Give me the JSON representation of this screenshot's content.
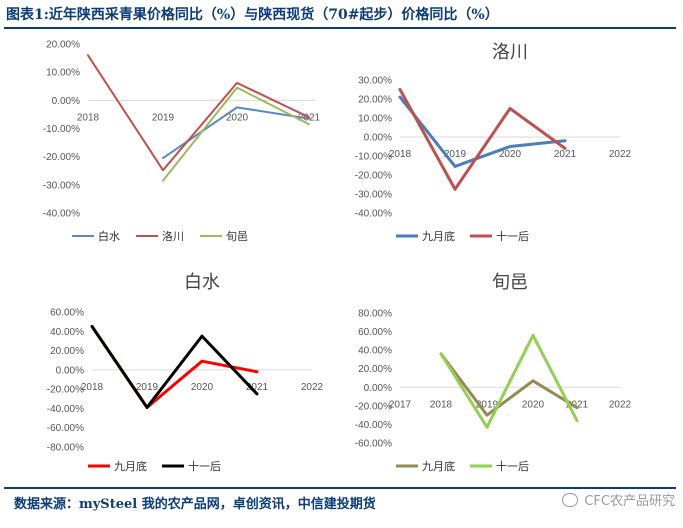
{
  "header": {
    "title": "图表1:近年陕西采青果价格同比（%）与陕西现货（70#起步）价格同比（%）"
  },
  "footer": {
    "source": "数据来源：mySteel 我的农产品网，卓创资讯，中信建投期货",
    "watermark": "CFC农产品研究"
  },
  "colors": {
    "brand": "#0b3c78",
    "baishui": "#5b87c4",
    "luochuan": "#c0504d",
    "xunyi": "#9bbb59",
    "jiuyuedi": "#4a7ebb",
    "shiyihou": "#c0504d",
    "red": "#ff0000",
    "black": "#000000",
    "olive": "#948a54",
    "lightgreen": "#92d050"
  },
  "chart_data": [
    {
      "type": "line",
      "title": "",
      "categories": [
        "2018",
        "2019",
        "2020",
        "2021"
      ],
      "yticks": [
        "20.00%",
        "10.00%",
        "0.00%",
        "-10.00%",
        "-20.00%",
        "-30.00%",
        "-40.00%"
      ],
      "ylim": [
        -40,
        20
      ],
      "legend": "bottom",
      "series": [
        {
          "name": "白水",
          "color_key": "baishui",
          "values": [
            null,
            -20.5,
            -2.5,
            -6.5
          ]
        },
        {
          "name": "洛川",
          "color_key": "luochuan",
          "values": [
            16.0,
            -24.8,
            6.2,
            -6.0
          ]
        },
        {
          "name": "旬邑",
          "color_key": "xunyi",
          "values": [
            null,
            -28.5,
            4.5,
            -8.5
          ]
        }
      ]
    },
    {
      "type": "line",
      "title": "洛川",
      "categories": [
        "2018",
        "2019",
        "2020",
        "2021",
        "2022"
      ],
      "yticks": [
        "30.00%",
        "20.00%",
        "10.00%",
        "0.00%",
        "-10.00%",
        "-20.00%",
        "-30.00%",
        "-40.00%"
      ],
      "ylim": [
        -40,
        30
      ],
      "legend": "bottom",
      "series": [
        {
          "name": "九月底",
          "color_key": "jiuyuedi",
          "values": [
            21.0,
            -15.5,
            -5.0,
            -2.0,
            null
          ]
        },
        {
          "name": "十一后",
          "color_key": "shiyihou",
          "values": [
            25.0,
            -27.5,
            15.0,
            -6.0,
            null
          ]
        }
      ]
    },
    {
      "type": "line",
      "title": "白水",
      "categories": [
        "2018",
        "2019",
        "2020",
        "2021",
        "2022"
      ],
      "yticks": [
        "60.00%",
        "40.00%",
        "20.00%",
        "0.00%",
        "-20.00%",
        "-40.00%",
        "-60.00%",
        "-80.00%"
      ],
      "ylim": [
        -80,
        60
      ],
      "legend": "bottom",
      "series": [
        {
          "name": "九月底",
          "color_key": "red",
          "values": [
            45.0,
            -39.0,
            9.0,
            -2.0,
            null
          ]
        },
        {
          "name": "十一后",
          "color_key": "black",
          "values": [
            45.0,
            -39.0,
            35.0,
            -25.0,
            null
          ]
        }
      ]
    },
    {
      "type": "line",
      "title": "旬邑",
      "categories": [
        "2017",
        "2018",
        "2019",
        "2020",
        "2021",
        "2022"
      ],
      "yticks": [
        "80.00%",
        "60.00%",
        "40.00%",
        "20.00%",
        "0.00%",
        "-20.00%",
        "-40.00%",
        "-60.00%"
      ],
      "ylim": [
        -60,
        80
      ],
      "legend": "bottom",
      "series": [
        {
          "name": "九月底",
          "color_key": "olive",
          "values": [
            null,
            36.0,
            -30.0,
            7.0,
            -22.0,
            null
          ]
        },
        {
          "name": "十一后",
          "color_key": "lightgreen",
          "values": [
            null,
            36.0,
            -43.0,
            56.0,
            -36.0,
            null
          ]
        }
      ]
    }
  ]
}
